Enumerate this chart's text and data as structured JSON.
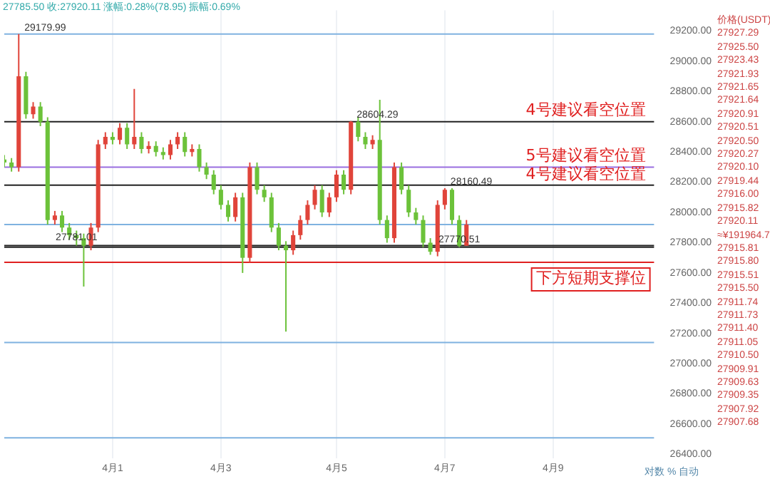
{
  "chart_data": {
    "type": "candlestick",
    "title": "27785.50 收:27920.11 涨幅:0.28%(78.95) 振幅:0.69%",
    "categories": [
      null,
      null,
      null,
      null,
      null,
      null,
      null,
      null,
      null,
      null,
      null,
      null,
      null,
      null,
      null,
      "4月1",
      null,
      null,
      null,
      null,
      null,
      null,
      null,
      null,
      null,
      null,
      null,
      null,
      null,
      null,
      "4月3",
      null,
      null,
      null,
      null,
      null,
      null,
      null,
      null,
      null,
      null,
      null,
      null,
      null,
      null,
      null,
      "4月5",
      null,
      null,
      null,
      null,
      null,
      null,
      null,
      null,
      null,
      null,
      null,
      null,
      null,
      null,
      "4月7",
      null,
      null,
      null,
      null,
      null,
      null,
      null,
      null,
      null,
      null,
      null,
      null,
      null,
      null,
      "4月9",
      null,
      null,
      null,
      null,
      null,
      null,
      null,
      null,
      null,
      null,
      null,
      null,
      null,
      null
    ],
    "ohlc": [
      [
        28350,
        28380,
        28300,
        28330
      ],
      [
        28330,
        28360,
        28270,
        28300
      ],
      [
        28300,
        29179.99,
        28270,
        28900
      ],
      [
        28900,
        28930,
        28620,
        28650
      ],
      [
        28650,
        28730,
        28620,
        28700
      ],
      [
        28700,
        28730,
        28570,
        28600
      ],
      [
        28600,
        28630,
        27920,
        27950
      ],
      [
        27950,
        28010,
        27920,
        27980
      ],
      [
        27980,
        28010,
        27870,
        27900
      ],
      [
        27900,
        27930,
        27820,
        27850
      ],
      [
        27850,
        27880,
        27781.01,
        27830
      ],
      [
        27830,
        27860,
        27510,
        27780
      ],
      [
        27780,
        27930,
        27750,
        27900
      ],
      [
        27900,
        28480,
        27870,
        28450
      ],
      [
        28450,
        28530,
        28420,
        28500
      ],
      [
        28500,
        28530,
        28450,
        28480
      ],
      [
        28480,
        28590,
        28450,
        28560
      ],
      [
        28560,
        28590,
        28420,
        28450
      ],
      [
        28450,
        28817,
        28420,
        28500
      ],
      [
        28500,
        28530,
        28390,
        28420
      ],
      [
        28420,
        28470,
        28390,
        28440
      ],
      [
        28440,
        28470,
        28370,
        28400
      ],
      [
        28400,
        28430,
        28350,
        28380
      ],
      [
        28380,
        28480,
        28350,
        28450
      ],
      [
        28450,
        28530,
        28420,
        28500
      ],
      [
        28500,
        28530,
        28370,
        28400
      ],
      [
        28400,
        28450,
        28370,
        28420
      ],
      [
        28420,
        28450,
        28270,
        28300
      ],
      [
        28300,
        28330,
        28220,
        28250
      ],
      [
        28250,
        28280,
        28120,
        28150
      ],
      [
        28150,
        28180,
        28020,
        28050
      ],
      [
        28050,
        28080,
        27940,
        27970
      ],
      [
        27970,
        28130,
        27940,
        28100
      ],
      [
        28100,
        28130,
        27600,
        27700
      ],
      [
        27700,
        28330,
        27670,
        28300
      ],
      [
        28300,
        28330,
        28120,
        28150
      ],
      [
        28150,
        28180,
        28070,
        28100
      ],
      [
        28100,
        28130,
        27870,
        27900
      ],
      [
        27900,
        27930,
        27750,
        27780
      ],
      [
        27780,
        27810,
        27212,
        27750
      ],
      [
        27750,
        27880,
        27720,
        27850
      ],
      [
        27850,
        27980,
        27820,
        27950
      ],
      [
        27950,
        28080,
        27920,
        28050
      ],
      [
        28050,
        28180,
        28020,
        28150
      ],
      [
        28150,
        28180,
        27970,
        28000
      ],
      [
        28000,
        28130,
        27970,
        28100
      ],
      [
        28100,
        28280,
        28070,
        28250
      ],
      [
        28250,
        28280,
        28120,
        28150
      ],
      [
        28150,
        28604.29,
        28120,
        28600
      ],
      [
        28600,
        28630,
        28470,
        28500
      ],
      [
        28500,
        28530,
        28420,
        28450
      ],
      [
        28450,
        28510,
        28420,
        28480
      ],
      [
        28480,
        28745,
        27920,
        27950
      ],
      [
        27950,
        27980,
        27800,
        27830
      ],
      [
        27830,
        28330,
        27800,
        28300
      ],
      [
        28300,
        28330,
        28120,
        28150
      ],
      [
        28150,
        28180,
        27970,
        28000
      ],
      [
        28000,
        28030,
        27920,
        27950
      ],
      [
        27950,
        27980,
        27770,
        27800
      ],
      [
        27800,
        27830,
        27720,
        27740
      ],
      [
        27740,
        28080,
        27710,
        28050
      ],
      [
        28050,
        28160.49,
        28020,
        28150
      ],
      [
        28150,
        28160,
        27920,
        27950
      ],
      [
        27950,
        27980,
        27770.51,
        27780
      ],
      [
        27780,
        27950,
        27780,
        27920.11
      ],
      null,
      null,
      null,
      null,
      null,
      null,
      null,
      null,
      null,
      null,
      null,
      null,
      null,
      null,
      null,
      null,
      null,
      null,
      null,
      null,
      null,
      null,
      null,
      null,
      null,
      null
    ],
    "ylim": [
      26373,
      29337
    ],
    "yticks": [
      {
        "value": 26400,
        "label": "26400.00"
      },
      {
        "value": 26600,
        "label": "26600.00"
      },
      {
        "value": 26800,
        "label": "26800.00"
      },
      {
        "value": 27000,
        "label": "27000.00"
      },
      {
        "value": 27200,
        "label": "27200.00"
      },
      {
        "value": 27400,
        "label": "27400.00"
      },
      {
        "value": 27600,
        "label": "27600.00"
      },
      {
        "value": 27800,
        "label": "27800.00"
      },
      {
        "value": 28000,
        "label": "28000.00"
      },
      {
        "value": 28200,
        "label": "28200.00"
      },
      {
        "value": 28400,
        "label": "28400.00"
      },
      {
        "value": 28600,
        "label": "28600.00"
      },
      {
        "value": 28800,
        "label": "28800.00"
      },
      {
        "value": 29000,
        "label": "29000.00"
      },
      {
        "value": 29200,
        "label": "29200.00"
      }
    ],
    "grid": "x",
    "ref_lines": [
      {
        "axis": "y",
        "value": 29180,
        "color": "#7fb2e0"
      },
      {
        "axis": "y",
        "value": 27920,
        "color": "#7fb2e0"
      },
      {
        "axis": "y",
        "value": 27140,
        "color": "#7fb2e0"
      },
      {
        "axis": "y",
        "value": 26510,
        "color": "#7fb2e0"
      },
      {
        "axis": "y",
        "value": 28600,
        "color": "#222222",
        "label": "4号建议看空位置"
      },
      {
        "axis": "y",
        "value": 28300,
        "color": "#9a6ee0",
        "label": "5号建议看空位置"
      },
      {
        "axis": "y",
        "value": 28180,
        "color": "#222222",
        "label": "4号建议看空位置"
      },
      {
        "axis": "y",
        "value": 27781.01,
        "color": "#222222",
        "label": "27781.01"
      },
      {
        "axis": "y",
        "value": 27770.51,
        "color": "#222222",
        "label": "27770.51"
      },
      {
        "axis": "y",
        "value": 27670,
        "color": "#e02020",
        "label": "下方短期支撑位"
      }
    ],
    "annotations": [
      {
        "text": "29179.99",
        "y": 29179.99
      },
      {
        "text": "28604.29",
        "y": 28604.29
      },
      {
        "text": "28160.49",
        "y": 28160.49
      },
      "价格(USDT)",
      "27927.29",
      "27925.50",
      "27923.43",
      "27921.93",
      "27921.65",
      "27921.64",
      "27920.91",
      "27920.51",
      "27920.50",
      "27920.27",
      "27920.10",
      "27919.44",
      "27916.00",
      "27915.82",
      "27920.11",
      "≈¥191964.7",
      "27915.81",
      "27915.80",
      "27915.51",
      "27915.50",
      "27911.74",
      "27911.73",
      "27911.40",
      "27911.05",
      "27910.50",
      "27909.91",
      "27909.63",
      "27909.35",
      "27907.92",
      "27907.68",
      "对数 % 自动"
    ]
  }
}
